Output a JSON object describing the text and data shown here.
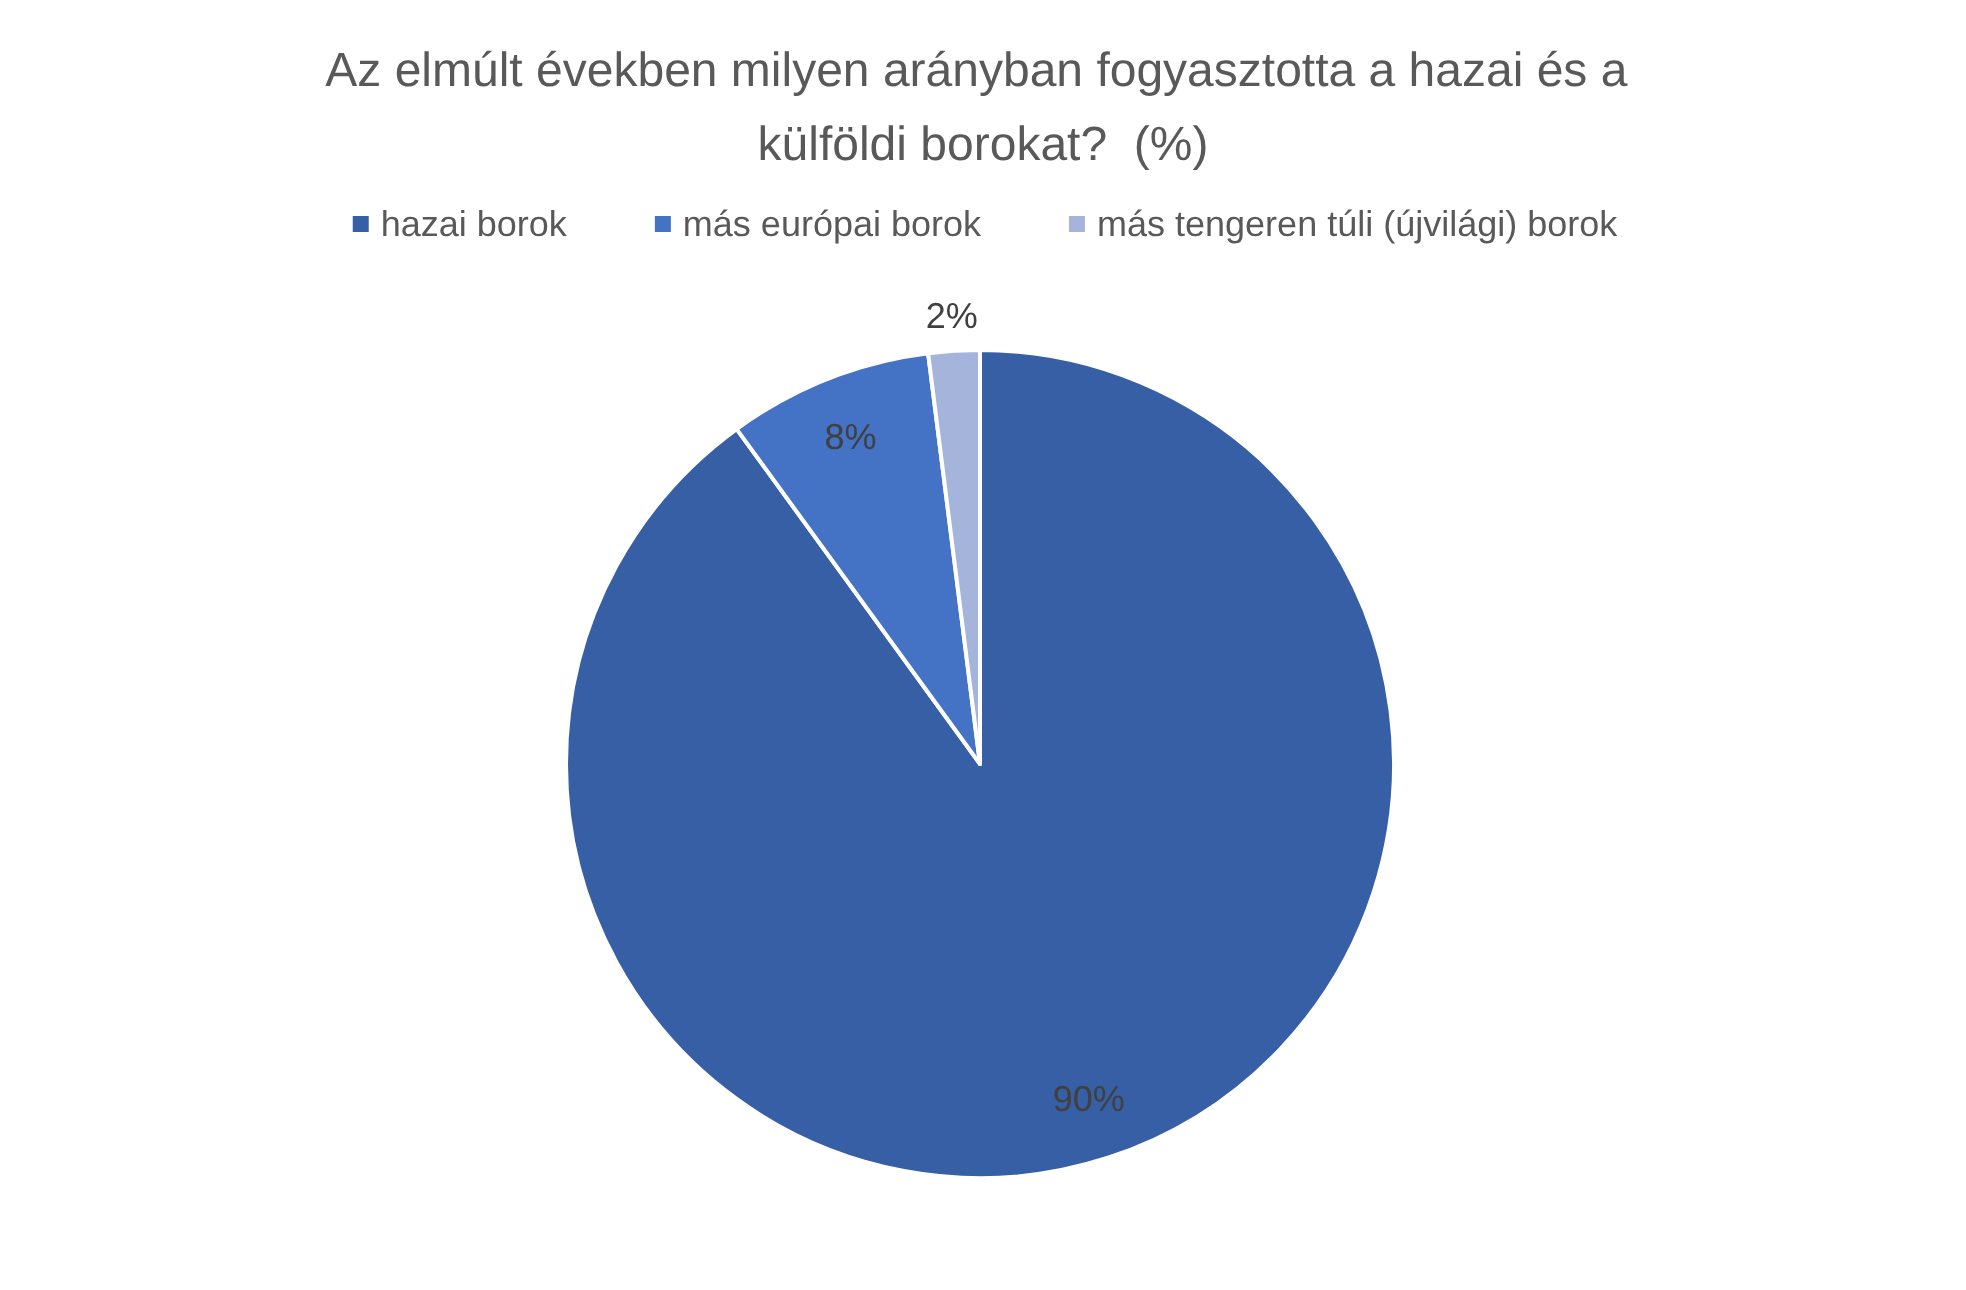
{
  "chart_data": {
    "type": "pie",
    "title": "Az elmúlt években milyen arányban fogyasztotta a hazai és a külföldi borokat?  (%)",
    "categories": [
      "hazai borok",
      "más európai borok",
      "más tengeren túli (újvilági) borok"
    ],
    "values": [
      90,
      8,
      2
    ],
    "value_labels": [
      "90%",
      "8%",
      "2%"
    ],
    "colors": [
      "#375fa5",
      "#4472c4",
      "#a5b4db"
    ],
    "legend": "top"
  }
}
